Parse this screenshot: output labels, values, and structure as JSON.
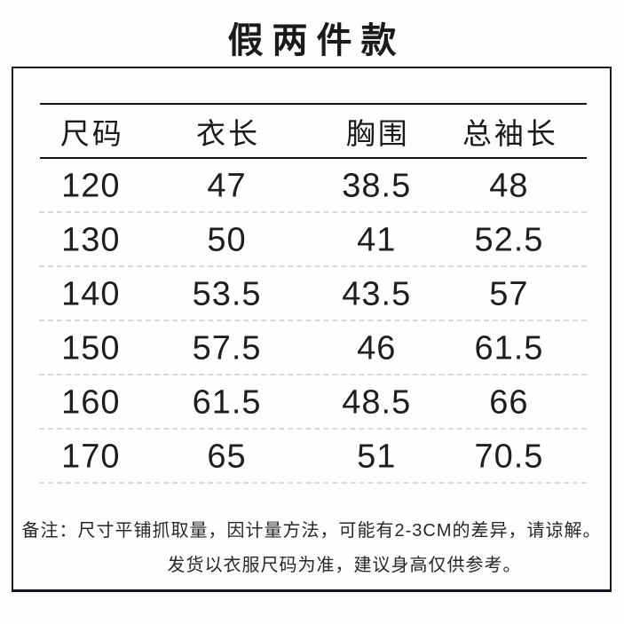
{
  "title": "假两件款",
  "chart_data": {
    "type": "table",
    "title": "假两件款",
    "columns": [
      "尺码",
      "衣长",
      "胸围",
      "总袖长"
    ],
    "rows": [
      [
        120,
        47,
        38.5,
        48
      ],
      [
        130,
        50,
        41,
        52.5
      ],
      [
        140,
        53.5,
        43.5,
        57
      ],
      [
        150,
        57.5,
        46,
        61.5
      ],
      [
        160,
        61.5,
        48.5,
        66
      ],
      [
        170,
        65,
        51,
        70.5
      ]
    ]
  },
  "notes": {
    "line1": "备注：尺寸平铺抓取量，因计量方法，可能有2-3CM的差异，请谅解。",
    "line2": "发货以衣服尺码为准，建议身高仅供参考。"
  },
  "colors": {
    "background": "#fdfdfd",
    "text": "#1a1a1a",
    "border": "#1c1c1c",
    "divider": "#d9d9d9"
  }
}
